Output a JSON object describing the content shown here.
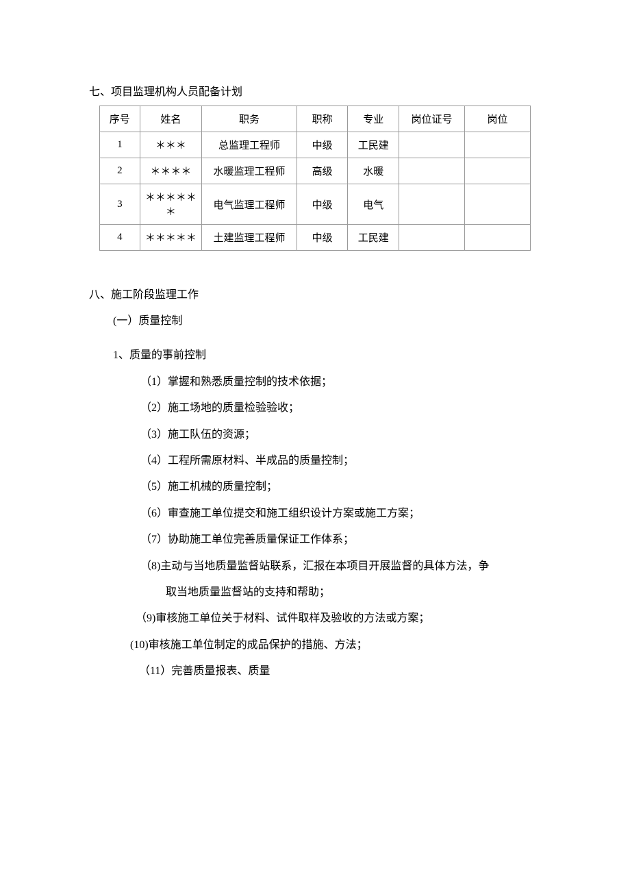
{
  "section7": {
    "title": "七、项目监理机构人员配备计划",
    "table": {
      "columns": [
        "序号",
        "姓名",
        "职务",
        "职称",
        "专业",
        "岗位证号",
        "岗位"
      ],
      "rows": [
        [
          "1",
          "＊＊＊",
          "总监理工程师",
          "中级",
          "工民建",
          "",
          ""
        ],
        [
          "2",
          "＊＊＊＊",
          "水暖监理工程师",
          "高级",
          "水暖",
          "",
          ""
        ],
        [
          "3",
          "＊＊＊＊＊＊",
          "电气监理工程师",
          "中级",
          "电气",
          "",
          ""
        ],
        [
          "4",
          "＊＊＊＊＊",
          "土建监理工程师",
          "中级",
          "工民建",
          "",
          ""
        ]
      ]
    }
  },
  "section8": {
    "title": "八、施工阶段监理工作",
    "sub1": "(一）质量控制",
    "sub2": "1、质量的事前控制",
    "items": {
      "i1": "（1）掌握和熟悉质量控制的技术依据；",
      "i2": "（2）施工场地的质量检验验收；",
      "i3": "（3）施工队伍的资源；",
      "i4": "（4）工程所需原材料、半成品的质量控制；",
      "i5": "（5）施工机械的质量控制；",
      "i6": "（6）审查施工单位提交和施工组织设计方案或施工方案；",
      "i7": "（7）协助施工单位完善质量保证工作体系；",
      "i8a": "（8)主动与当地质量监督站联系，汇报在本项目开展监督的具体方法，争",
      "i8b": "取当地质量监督站的支持和帮助；",
      "i9": "（9)审核施工单位关于材料、试件取样及验收的方法或方案；",
      "i10": "(10)审核施工单位制定的成品保护的措施、方法；",
      "i11": "（11）完善质量报表、质量"
    }
  }
}
